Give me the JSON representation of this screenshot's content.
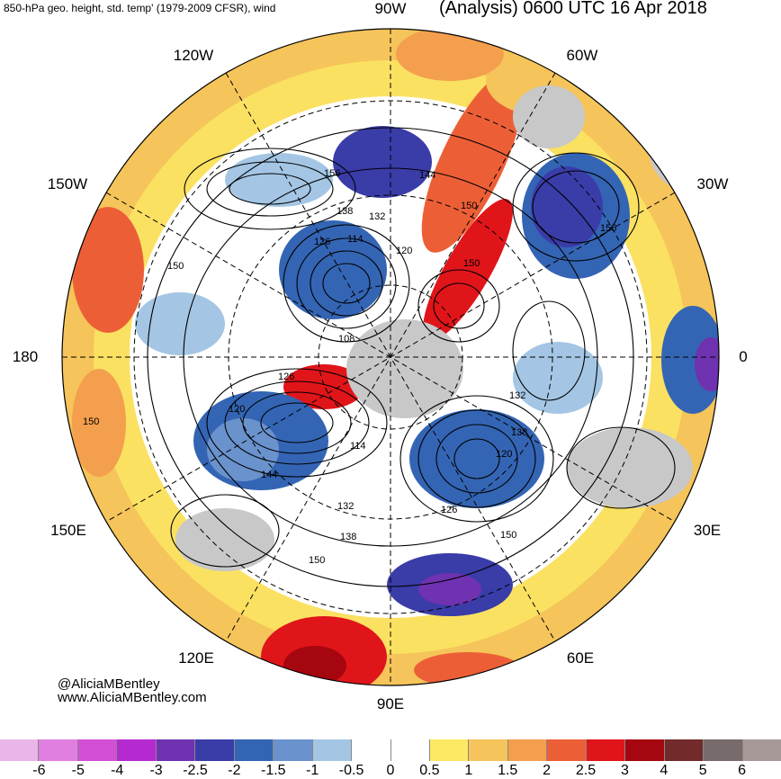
{
  "header": {
    "title_left": "850-hPa geo. height, std. temp' (1979-2009 CFSR), wind",
    "title_right": "(Analysis) 0600 UTC 16 Apr 2018"
  },
  "map": {
    "longitude_labels": [
      "90W",
      "60W",
      "30W",
      "0",
      "30E",
      "60E",
      "90E",
      "120E",
      "150E",
      "180",
      "150W",
      "120W"
    ],
    "contour_labels": [
      "156",
      "144",
      "150",
      "138",
      "132",
      "120",
      "114",
      "126",
      "156",
      "108",
      "150",
      "126",
      "120",
      "150",
      "132",
      "138",
      "114",
      "120",
      "144",
      "126",
      "132",
      "150",
      "138",
      "150",
      "150"
    ],
    "colors": {
      "ocean_white": "#ffffff",
      "land_grey": "#c8c8c8"
    }
  },
  "credits": {
    "handle": "@AliciaMBentley",
    "site": "www.AliciaMBentley.com"
  },
  "colorbar": {
    "colors": [
      "#eab6ea",
      "#e07fe0",
      "#d34fd6",
      "#b52ad0",
      "#6f32b0",
      "#3a3ca8",
      "#3465b4",
      "#6a92cc",
      "#a4c6e4",
      "#ffffff",
      "#ffffff",
      "#fde964",
      "#f5c45a",
      "#f39f4d",
      "#ec5f36",
      "#e0151a",
      "#a6060f",
      "#732a2a",
      "#786b6b",
      "#a89999"
    ],
    "tick_labels": [
      "-6",
      "-5",
      "-4",
      "-3",
      "-2.5",
      "-2",
      "-1.5",
      "-1",
      "-0.5",
      "0",
      "0.5",
      "1",
      "1.5",
      "2",
      "2.5",
      "3",
      "4",
      "5",
      "6"
    ]
  }
}
